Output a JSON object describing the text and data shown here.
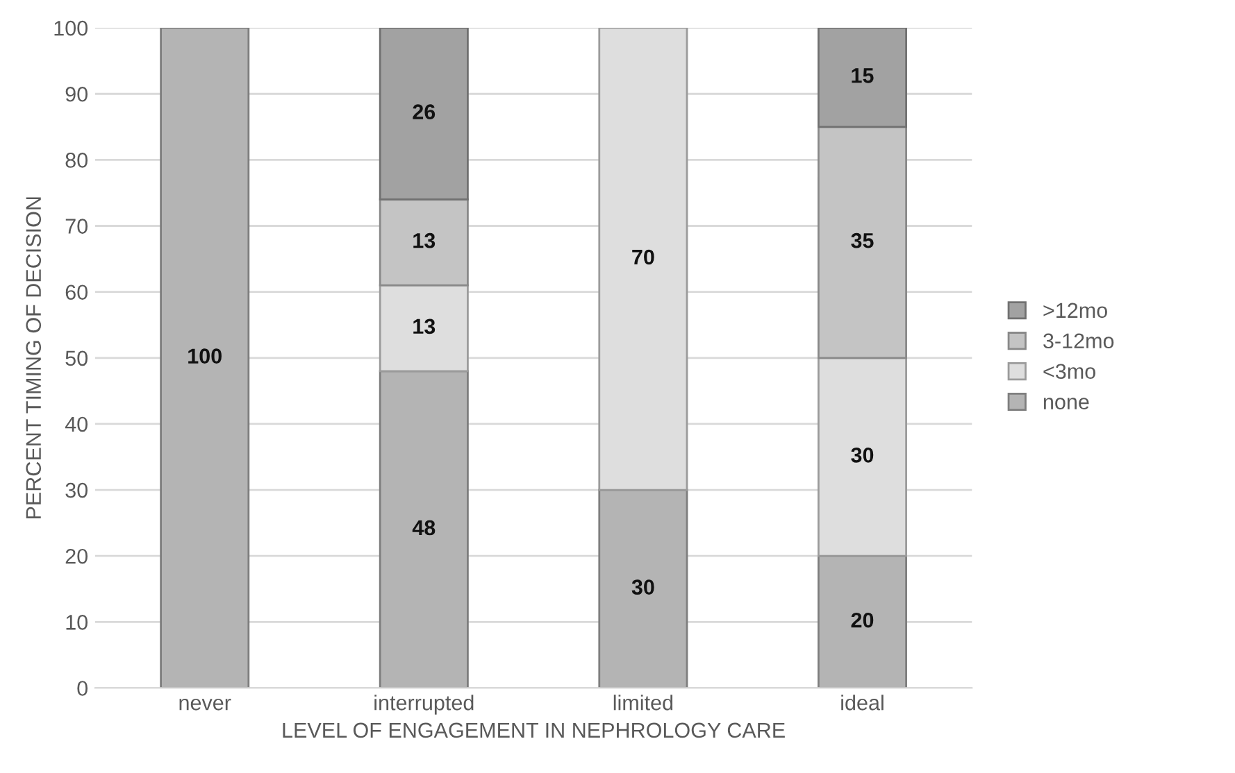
{
  "chart_data": {
    "type": "bar",
    "stacked": true,
    "xlabel": "LEVEL OF ENGAGEMENT IN NEPHROLOGY CARE",
    "ylabel": "PERCENT TIMING OF DECISION",
    "categories": [
      "never",
      "interrupted",
      "limited",
      "ideal"
    ],
    "series": [
      {
        "name": "none",
        "color": "#b4b4b4",
        "values": [
          100,
          48,
          30,
          20
        ]
      },
      {
        "name": "<3mo",
        "color": "#dedede",
        "values": [
          null,
          13,
          70,
          30
        ]
      },
      {
        "name": "3-12mo",
        "color": "#c4c4c4",
        "values": [
          null,
          13,
          null,
          35
        ]
      },
      {
        "name": ">12mo",
        "color": "#a2a2a2",
        "values": [
          null,
          26,
          null,
          15
        ]
      }
    ],
    "ylim": [
      0,
      100
    ],
    "yticks": [
      0,
      10,
      20,
      30,
      40,
      50,
      60,
      70,
      80,
      90,
      100
    ],
    "grid": "y",
    "legend": "right",
    "data_labels": true
  }
}
